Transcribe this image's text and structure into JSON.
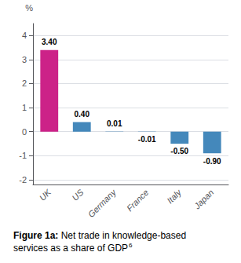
{
  "chart_data": {
    "type": "bar",
    "title": "Figure 1a:",
    "subtitle": "Net trade in knowledge-based\nservices as a share of GDP",
    "annotations": [
      "6"
    ],
    "ylabel": "%",
    "categories": [
      "UK",
      "US",
      "Germany",
      "France",
      "Italy",
      "Japan"
    ],
    "values": [
      3.4,
      0.4,
      0.01,
      -0.01,
      -0.5,
      -0.9
    ],
    "value_labels": [
      "3.40",
      "0.40",
      "0.01",
      "-0.01",
      "-0.50",
      "-0.90"
    ],
    "colors": [
      "#cc2288",
      "#4488bb",
      "#4488bb",
      "#4488bb",
      "#4488bb",
      "#4488bb"
    ],
    "ylim": [
      -2.2,
      4.5
    ],
    "yticks": [
      -2,
      -1,
      0,
      1,
      2,
      3,
      4
    ],
    "grid": true,
    "data_labels": true
  }
}
